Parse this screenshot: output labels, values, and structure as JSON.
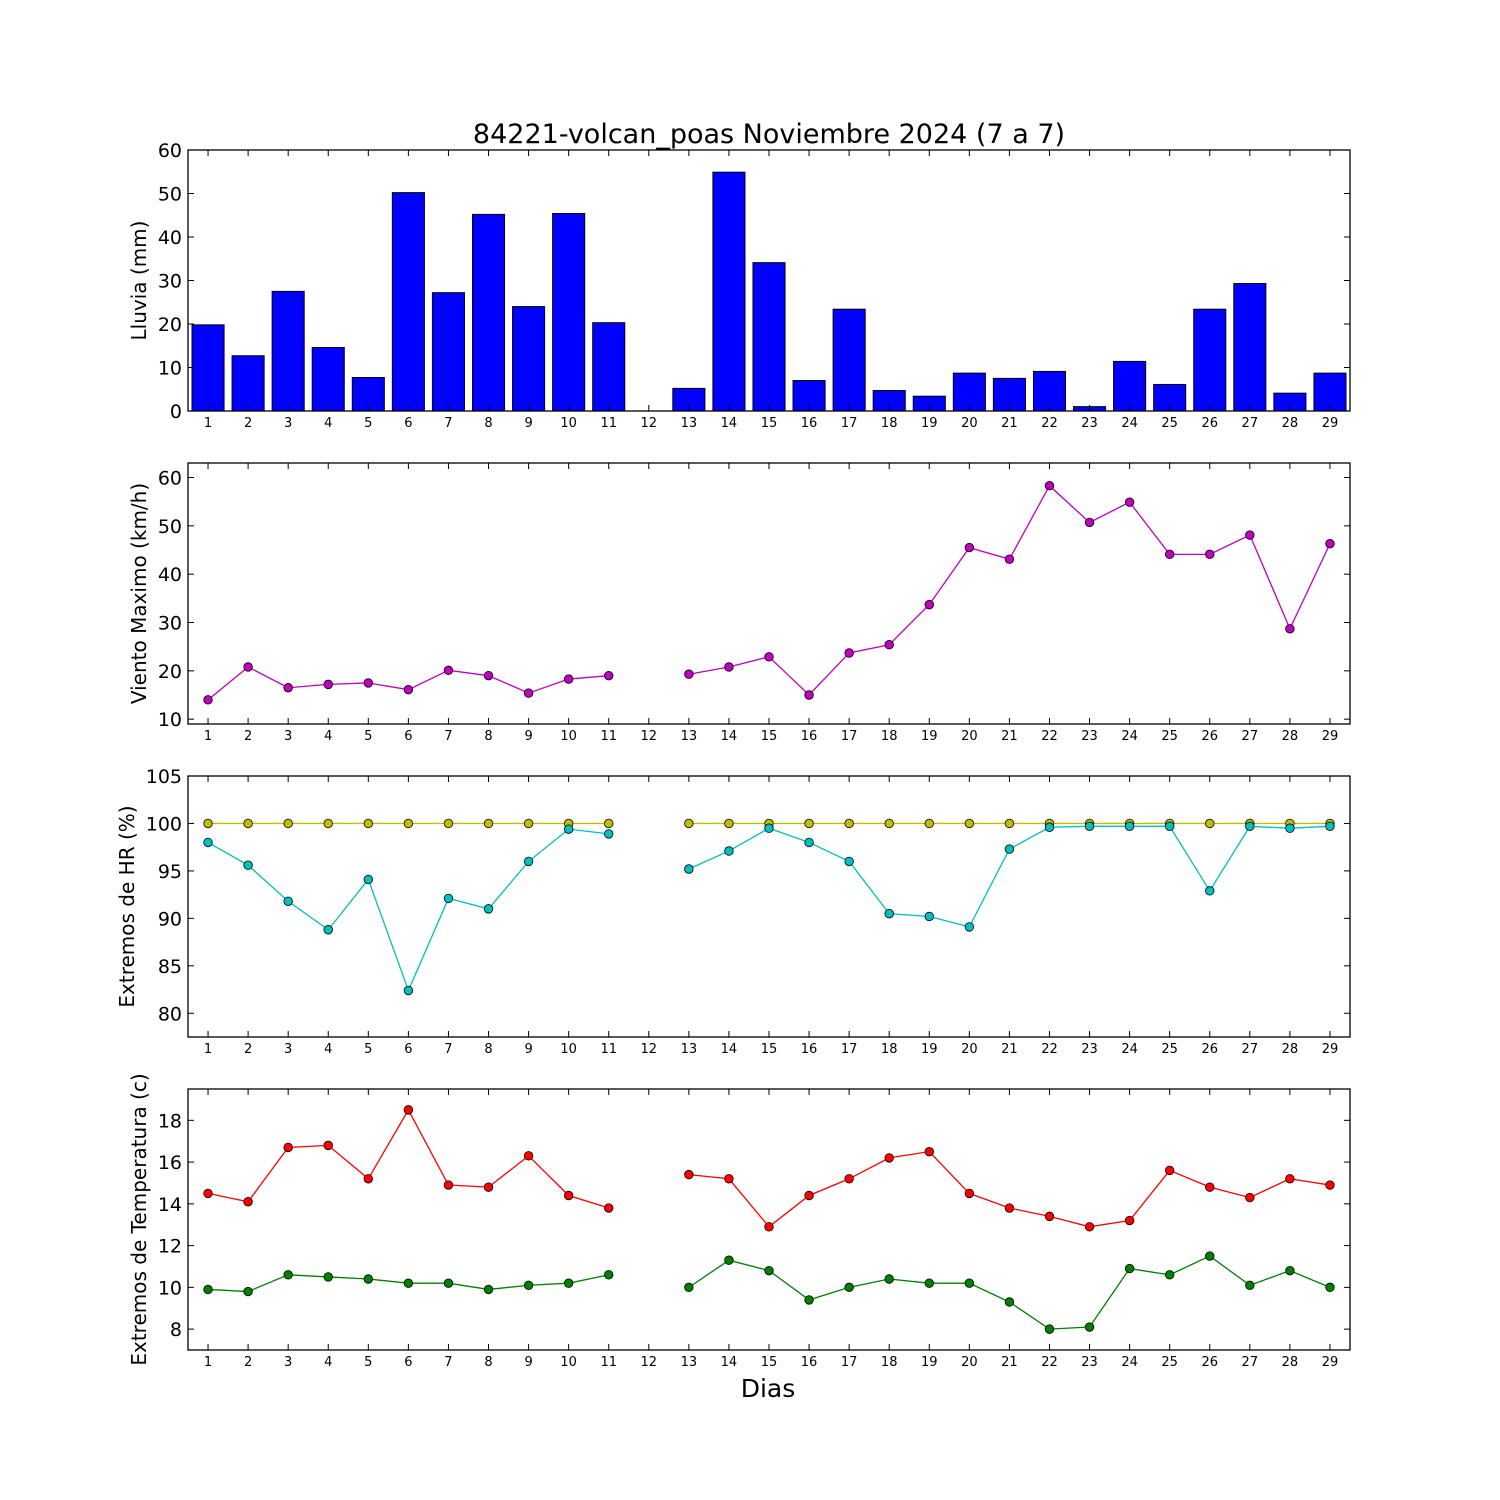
{
  "chart_data": [
    {
      "type": "bar",
      "title": "84221-volcan_poas Noviembre 2024  (7 a 7)",
      "xlabel": "",
      "ylabel": "Lluvia (mm)",
      "categories": [
        "1",
        "2",
        "3",
        "4",
        "5",
        "6",
        "7",
        "8",
        "9",
        "10",
        "11",
        "12",
        "13",
        "14",
        "15",
        "16",
        "17",
        "18",
        "19",
        "20",
        "21",
        "22",
        "23",
        "24",
        "25",
        "26",
        "27",
        "28",
        "29"
      ],
      "values": [
        19.8,
        12.7,
        27.5,
        14.6,
        7.7,
        50.2,
        27.2,
        45.2,
        24.0,
        45.4,
        20.3,
        0,
        5.2,
        54.9,
        34.1,
        7.0,
        23.4,
        4.7,
        3.4,
        8.7,
        7.5,
        9.1,
        1.0,
        11.4,
        6.1,
        23.4,
        29.3,
        4.1,
        8.7
      ],
      "ylim": [
        0,
        60
      ],
      "yticks": [
        "0",
        "10",
        "20",
        "30",
        "40",
        "50",
        "60"
      ],
      "color": "#0000ff"
    },
    {
      "type": "line",
      "xlabel": "",
      "ylabel": "Viento Maximo (km/h)",
      "x": [
        "1",
        "2",
        "3",
        "4",
        "5",
        "6",
        "7",
        "8",
        "9",
        "10",
        "11",
        "12",
        "13",
        "14",
        "15",
        "16",
        "17",
        "18",
        "19",
        "20",
        "21",
        "22",
        "23",
        "24",
        "25",
        "26",
        "27",
        "28",
        "29"
      ],
      "series": [
        {
          "color": "#bf00bf",
          "values": [
            14.0,
            20.8,
            16.5,
            17.2,
            17.5,
            16.1,
            20.1,
            19.0,
            15.4,
            18.3,
            19.0,
            null,
            19.3,
            20.8,
            22.9,
            15.0,
            23.7,
            25.4,
            33.7,
            45.5,
            43.1,
            58.3,
            50.7,
            54.9,
            44.1,
            44.1,
            48.1,
            28.7,
            46.3
          ]
        }
      ],
      "ylim": [
        9,
        63
      ],
      "yticks": [
        "10",
        "20",
        "30",
        "40",
        "50",
        "60"
      ]
    },
    {
      "type": "line",
      "xlabel": "",
      "ylabel": "Extremos de HR (%)",
      "x": [
        "1",
        "2",
        "3",
        "4",
        "5",
        "6",
        "7",
        "8",
        "9",
        "10",
        "11",
        "12",
        "13",
        "14",
        "15",
        "16",
        "17",
        "18",
        "19",
        "20",
        "21",
        "22",
        "23",
        "24",
        "25",
        "26",
        "27",
        "28",
        "29"
      ],
      "series": [
        {
          "color": "#bfbf00",
          "values": [
            100,
            100,
            100,
            100,
            100,
            100,
            100,
            100,
            100,
            100,
            100,
            null,
            100,
            100,
            100,
            100,
            100,
            100,
            100,
            100,
            100,
            100,
            100,
            100,
            100,
            100,
            100,
            100,
            100
          ]
        },
        {
          "color": "#00bfbf",
          "values": [
            98.0,
            95.6,
            91.8,
            88.8,
            94.1,
            82.4,
            92.1,
            91.0,
            96.0,
            99.4,
            98.9,
            null,
            95.2,
            97.1,
            99.5,
            98.0,
            96.0,
            90.5,
            90.2,
            89.1,
            97.3,
            99.6,
            99.7,
            99.7,
            99.7,
            92.9,
            99.7,
            99.5,
            99.7
          ]
        }
      ],
      "ylim": [
        77.5,
        105
      ],
      "yticks": [
        "80",
        "85",
        "90",
        "95",
        "100",
        "105"
      ]
    },
    {
      "type": "line",
      "xlabel": "Dias",
      "ylabel": "Extremos de Temperatura (c)",
      "x": [
        "1",
        "2",
        "3",
        "4",
        "5",
        "6",
        "7",
        "8",
        "9",
        "10",
        "11",
        "12",
        "13",
        "14",
        "15",
        "16",
        "17",
        "18",
        "19",
        "20",
        "21",
        "22",
        "23",
        "24",
        "25",
        "26",
        "27",
        "28",
        "29"
      ],
      "series": [
        {
          "color": "#ff0000",
          "values": [
            14.5,
            14.1,
            16.7,
            16.8,
            15.2,
            18.5,
            14.9,
            14.8,
            16.3,
            14.4,
            13.8,
            null,
            15.4,
            15.2,
            12.9,
            14.4,
            15.2,
            16.2,
            16.5,
            14.5,
            13.8,
            13.4,
            12.9,
            13.2,
            15.6,
            14.8,
            14.3,
            15.2,
            14.9
          ]
        },
        {
          "color": "#008000",
          "values": [
            9.9,
            9.8,
            10.6,
            10.5,
            10.4,
            10.2,
            10.2,
            9.9,
            10.1,
            10.2,
            10.6,
            null,
            10.0,
            11.3,
            10.8,
            9.4,
            10.0,
            10.4,
            10.2,
            10.2,
            9.3,
            8.0,
            8.1,
            10.9,
            10.6,
            11.5,
            10.1,
            10.8,
            10.0
          ]
        }
      ],
      "ylim": [
        7,
        19.5
      ],
      "yticks": [
        "8",
        "10",
        "12",
        "14",
        "16",
        "18"
      ]
    }
  ]
}
